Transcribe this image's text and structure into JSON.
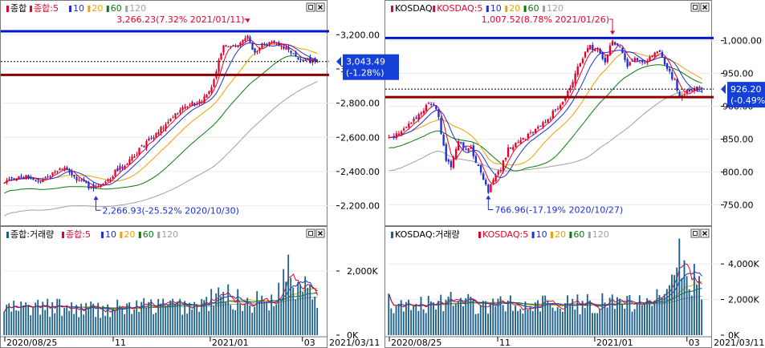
{
  "colors": {
    "up": "#e8002a",
    "down": "#1c2fd8",
    "ma5": "#e8002a",
    "ma10": "#1c2fd8",
    "ma20": "#f0a000",
    "ma60": "#0a7a0a",
    "ma120": "#a0a0a0",
    "volume": "#1c5f8a",
    "blue_line": "#0018c8",
    "red_line": "#8a0000",
    "price_tag": "#1540d8"
  },
  "chart_data": [
    {
      "type": "candlestick",
      "panel": "kospi-price",
      "legend": [
        "종합",
        "종합:5",
        "10",
        "20",
        "60",
        "120"
      ],
      "yticks": [
        3200,
        3000,
        2800,
        2600,
        2400,
        2200
      ],
      "ytick_labels": [
        "3,200.00",
        "3,000.00",
        "2,800.00",
        "2,600.00",
        "2,400.00",
        "2,200.00"
      ],
      "ylim": [
        2090,
        3300
      ],
      "last": {
        "value": 3043.49,
        "label": "3,043.49",
        "change": "(-1.28%)"
      },
      "high": {
        "value": 3266.23,
        "label": "3,266.23(7.32% 2021/01/11)"
      },
      "low": {
        "value": 2266.93,
        "label": "2,266.93(-25.52% 2020/10/30)"
      },
      "blue_line": 3220,
      "red_line": 2965,
      "dotted_line": 3043.49,
      "trend": [
        [
          0,
          2340
        ],
        [
          5,
          2360
        ],
        [
          10,
          2370
        ],
        [
          15,
          2330
        ],
        [
          20,
          2390
        ],
        [
          25,
          2420
        ],
        [
          30,
          2360
        ],
        [
          35,
          2310
        ],
        [
          38,
          2300
        ],
        [
          42,
          2330
        ],
        [
          46,
          2400
        ],
        [
          50,
          2440
        ],
        [
          55,
          2510
        ],
        [
          60,
          2580
        ],
        [
          65,
          2650
        ],
        [
          70,
          2720
        ],
        [
          75,
          2780
        ],
        [
          79,
          2800
        ],
        [
          83,
          2830
        ],
        [
          86,
          2900
        ],
        [
          89,
          3050
        ],
        [
          91,
          3150
        ],
        [
          93,
          3140
        ],
        [
          95,
          3150
        ],
        [
          97,
          3120
        ],
        [
          99,
          3170
        ],
        [
          101,
          3200
        ],
        [
          103,
          3120
        ],
        [
          105,
          3090
        ],
        [
          107,
          3140
        ],
        [
          110,
          3160
        ],
        [
          113,
          3150
        ],
        [
          116,
          3130
        ],
        [
          119,
          3090
        ],
        [
          122,
          3070
        ],
        [
          125,
          3050
        ],
        [
          128,
          3045
        ],
        [
          130,
          3043
        ]
      ]
    },
    {
      "type": "bar",
      "panel": "kospi-volume",
      "legend": [
        "종합:거래량",
        "종합:5",
        "10",
        "20",
        "60",
        "120"
      ],
      "yticks": [
        2000,
        0
      ],
      "ytick_labels": [
        "2,000K",
        "0K"
      ],
      "ylim": [
        0,
        3000
      ],
      "x_labels": [
        "2020/08/25",
        "11",
        "2021/01",
        "03"
      ],
      "current_date": "2021/03/11",
      "trend": [
        [
          0,
          820
        ],
        [
          20,
          860
        ],
        [
          40,
          800
        ],
        [
          60,
          900
        ],
        [
          80,
          920
        ],
        [
          88,
          1150
        ],
        [
          92,
          1250
        ],
        [
          100,
          1000
        ],
        [
          110,
          1100
        ],
        [
          115,
          1400
        ],
        [
          118,
          2300
        ],
        [
          121,
          1500
        ],
        [
          125,
          1750
        ],
        [
          130,
          1300
        ]
      ]
    },
    {
      "type": "candlestick",
      "panel": "kosdaq-price",
      "legend": [
        "KOSDAQ",
        "KOSDAQ:5",
        "10",
        "20",
        "60",
        "120"
      ],
      "yticks": [
        1000,
        950,
        900,
        850,
        800,
        750
      ],
      "ytick_labels": [
        "1,000.00",
        "950.00",
        "900.00",
        "850.00",
        "800.00",
        "750.00"
      ],
      "ylim": [
        720,
        1035
      ],
      "last": {
        "value": 926.2,
        "label": "926.20",
        "change": "(-0.49%)"
      },
      "high": {
        "value": 1007.52,
        "label": "1,007.52(8.78% 2021/01/26)"
      },
      "low": {
        "value": 766.96,
        "label": "766.96(-17.19% 2020/10/27)"
      },
      "blue_line": 1004,
      "red_line": 914,
      "dotted_line": 926.2,
      "trend": [
        [
          0,
          850
        ],
        [
          5,
          860
        ],
        [
          10,
          880
        ],
        [
          15,
          900
        ],
        [
          18,
          905
        ],
        [
          20,
          880
        ],
        [
          23,
          820
        ],
        [
          25,
          810
        ],
        [
          28,
          850
        ],
        [
          31,
          835
        ],
        [
          33,
          840
        ],
        [
          35,
          815
        ],
        [
          38,
          790
        ],
        [
          40,
          772
        ],
        [
          42,
          790
        ],
        [
          45,
          805
        ],
        [
          48,
          835
        ],
        [
          52,
          845
        ],
        [
          56,
          855
        ],
        [
          60,
          865
        ],
        [
          64,
          880
        ],
        [
          68,
          900
        ],
        [
          72,
          920
        ],
        [
          75,
          950
        ],
        [
          78,
          975
        ],
        [
          81,
          990
        ],
        [
          84,
          985
        ],
        [
          87,
          970
        ],
        [
          90,
          1000
        ],
        [
          92,
          995
        ],
        [
          94,
          980
        ],
        [
          96,
          960
        ],
        [
          99,
          975
        ],
        [
          102,
          965
        ],
        [
          105,
          975
        ],
        [
          108,
          985
        ],
        [
          110,
          975
        ],
        [
          112,
          955
        ],
        [
          115,
          940
        ],
        [
          117,
          915
        ],
        [
          120,
          922
        ],
        [
          123,
          925
        ],
        [
          126,
          926
        ]
      ]
    },
    {
      "type": "bar",
      "panel": "kosdaq-volume",
      "legend": [
        "KOSDAQ:거래량",
        "KOSDAQ:5",
        "10",
        "20",
        "60",
        "120"
      ],
      "yticks": [
        4000,
        2000,
        0
      ],
      "ytick_labels": [
        "4,000K",
        "2,000K",
        "0K"
      ],
      "ylim": [
        0,
        5400
      ],
      "x_labels": [
        "2020/08/25",
        "11",
        "2021/01",
        "03"
      ],
      "current_date": "2021/03/11",
      "trend": [
        [
          0,
          1750
        ],
        [
          20,
          1850
        ],
        [
          40,
          1700
        ],
        [
          60,
          1800
        ],
        [
          80,
          1750
        ],
        [
          95,
          1850
        ],
        [
          105,
          2050
        ],
        [
          110,
          2400
        ],
        [
          113,
          3500
        ],
        [
          115,
          4600
        ],
        [
          118,
          3900
        ],
        [
          121,
          3000
        ],
        [
          124,
          3200
        ],
        [
          126,
          2700
        ]
      ]
    }
  ]
}
